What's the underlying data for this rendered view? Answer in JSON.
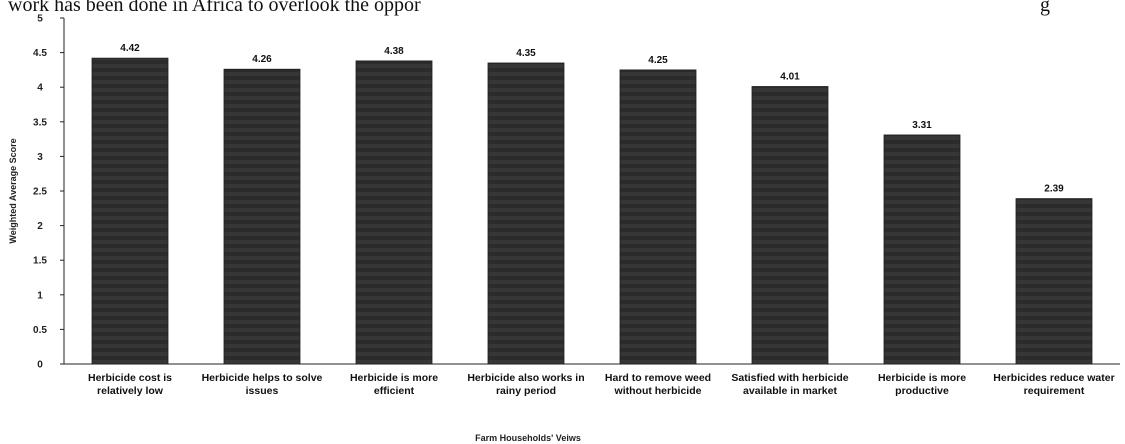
{
  "page_text": {
    "cut_line_left": "work has been done in Africa to overlook the oppor",
    "cut_line_right": "g"
  },
  "chart_data": {
    "type": "bar",
    "title": "",
    "xlabel": "Farm Households'  Veiws",
    "ylabel": "Weighted Average Score",
    "ylim": [
      0,
      5
    ],
    "yticks": [
      0,
      0.5,
      1,
      1.5,
      2,
      2.5,
      3,
      3.5,
      4,
      4.5,
      5
    ],
    "grid": false,
    "categories": [
      [
        "Herbicide cost is",
        "relatively low"
      ],
      [
        "Herbicide helps to solve",
        "issues"
      ],
      [
        "Herbicide is more",
        "efficient"
      ],
      [
        "Herbicide also works in",
        "rainy period"
      ],
      [
        "Hard to remove weed",
        "without herbicide"
      ],
      [
        "Satisfied with herbicide",
        "available in market"
      ],
      [
        "Herbicide is more",
        "productive"
      ],
      [
        "Herbicides reduce water",
        "requirement"
      ]
    ],
    "values": [
      4.42,
      4.26,
      4.38,
      4.35,
      4.25,
      4.01,
      3.31,
      2.39
    ],
    "data_labels": [
      "4.42",
      "4.26",
      "4.38",
      "4.35",
      "4.25",
      "4.01",
      "3.31",
      "2.39"
    ],
    "colors": {
      "bar": "#2b2b2b",
      "bar_stripe": "#3c3c3c",
      "axis": "#222222"
    }
  }
}
